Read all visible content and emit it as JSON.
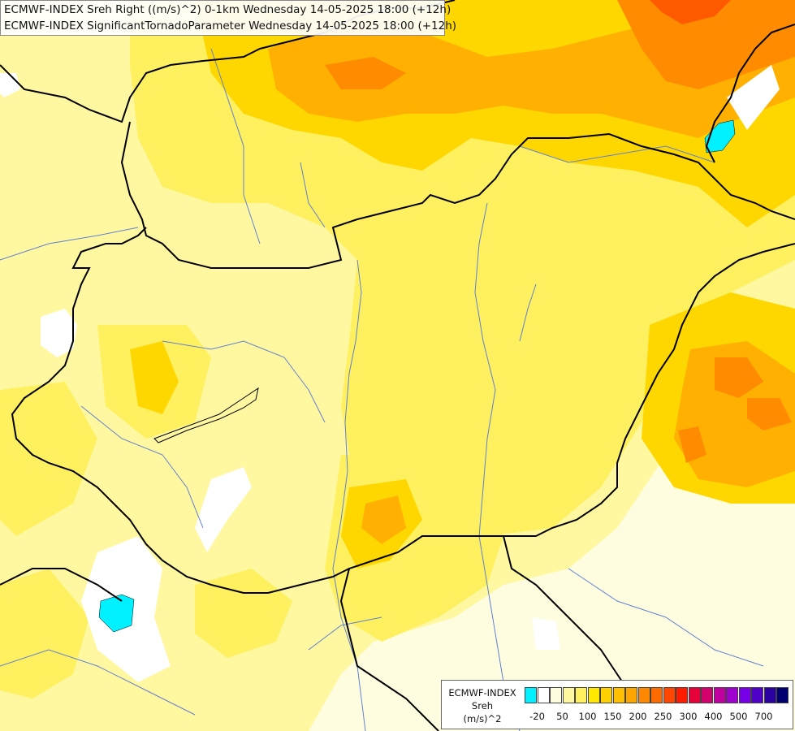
{
  "title": {
    "line1": "ECMWF-INDEX Sreh Right ((m/s)^2) 0-1km Wednesday 14-05-2025 18:00 (+12h)",
    "line2": "ECMWF-INDEX SignificantTornadoParameter Wednesday 14-05-2025 18:00 (+12h)"
  },
  "legend": {
    "title_lines": [
      "ECMWF-INDEX",
      "Sreh",
      "(m/s)^2"
    ],
    "colors": [
      "#00f0ff",
      "#ffffff",
      "#fffde0",
      "#fff8a0",
      "#fff060",
      "#ffe800",
      "#ffd000",
      "#ffbf00",
      "#ffa500",
      "#ff8800",
      "#ff6a00",
      "#ff4500",
      "#ff1a00",
      "#e8003a",
      "#d4006e",
      "#c000a0",
      "#a000d0",
      "#7800e8",
      "#5000c8",
      "#2a00a0",
      "#000070"
    ],
    "ticks": [
      "-20",
      "50",
      "100",
      "150",
      "200",
      "250",
      "300",
      "400",
      "500",
      "700"
    ],
    "scale_icon": "color-scale"
  },
  "colors": {
    "base": "#fffde0",
    "light_yellow": "#fff8a0",
    "yellow": "#fff060",
    "gold": "#ffd700",
    "orange": "#ffb000",
    "dark_orange": "#ff8c00",
    "red_orange": "#ff5a00",
    "cyan": "#00f0ff",
    "border": "#000000",
    "river": "#6080d0"
  }
}
